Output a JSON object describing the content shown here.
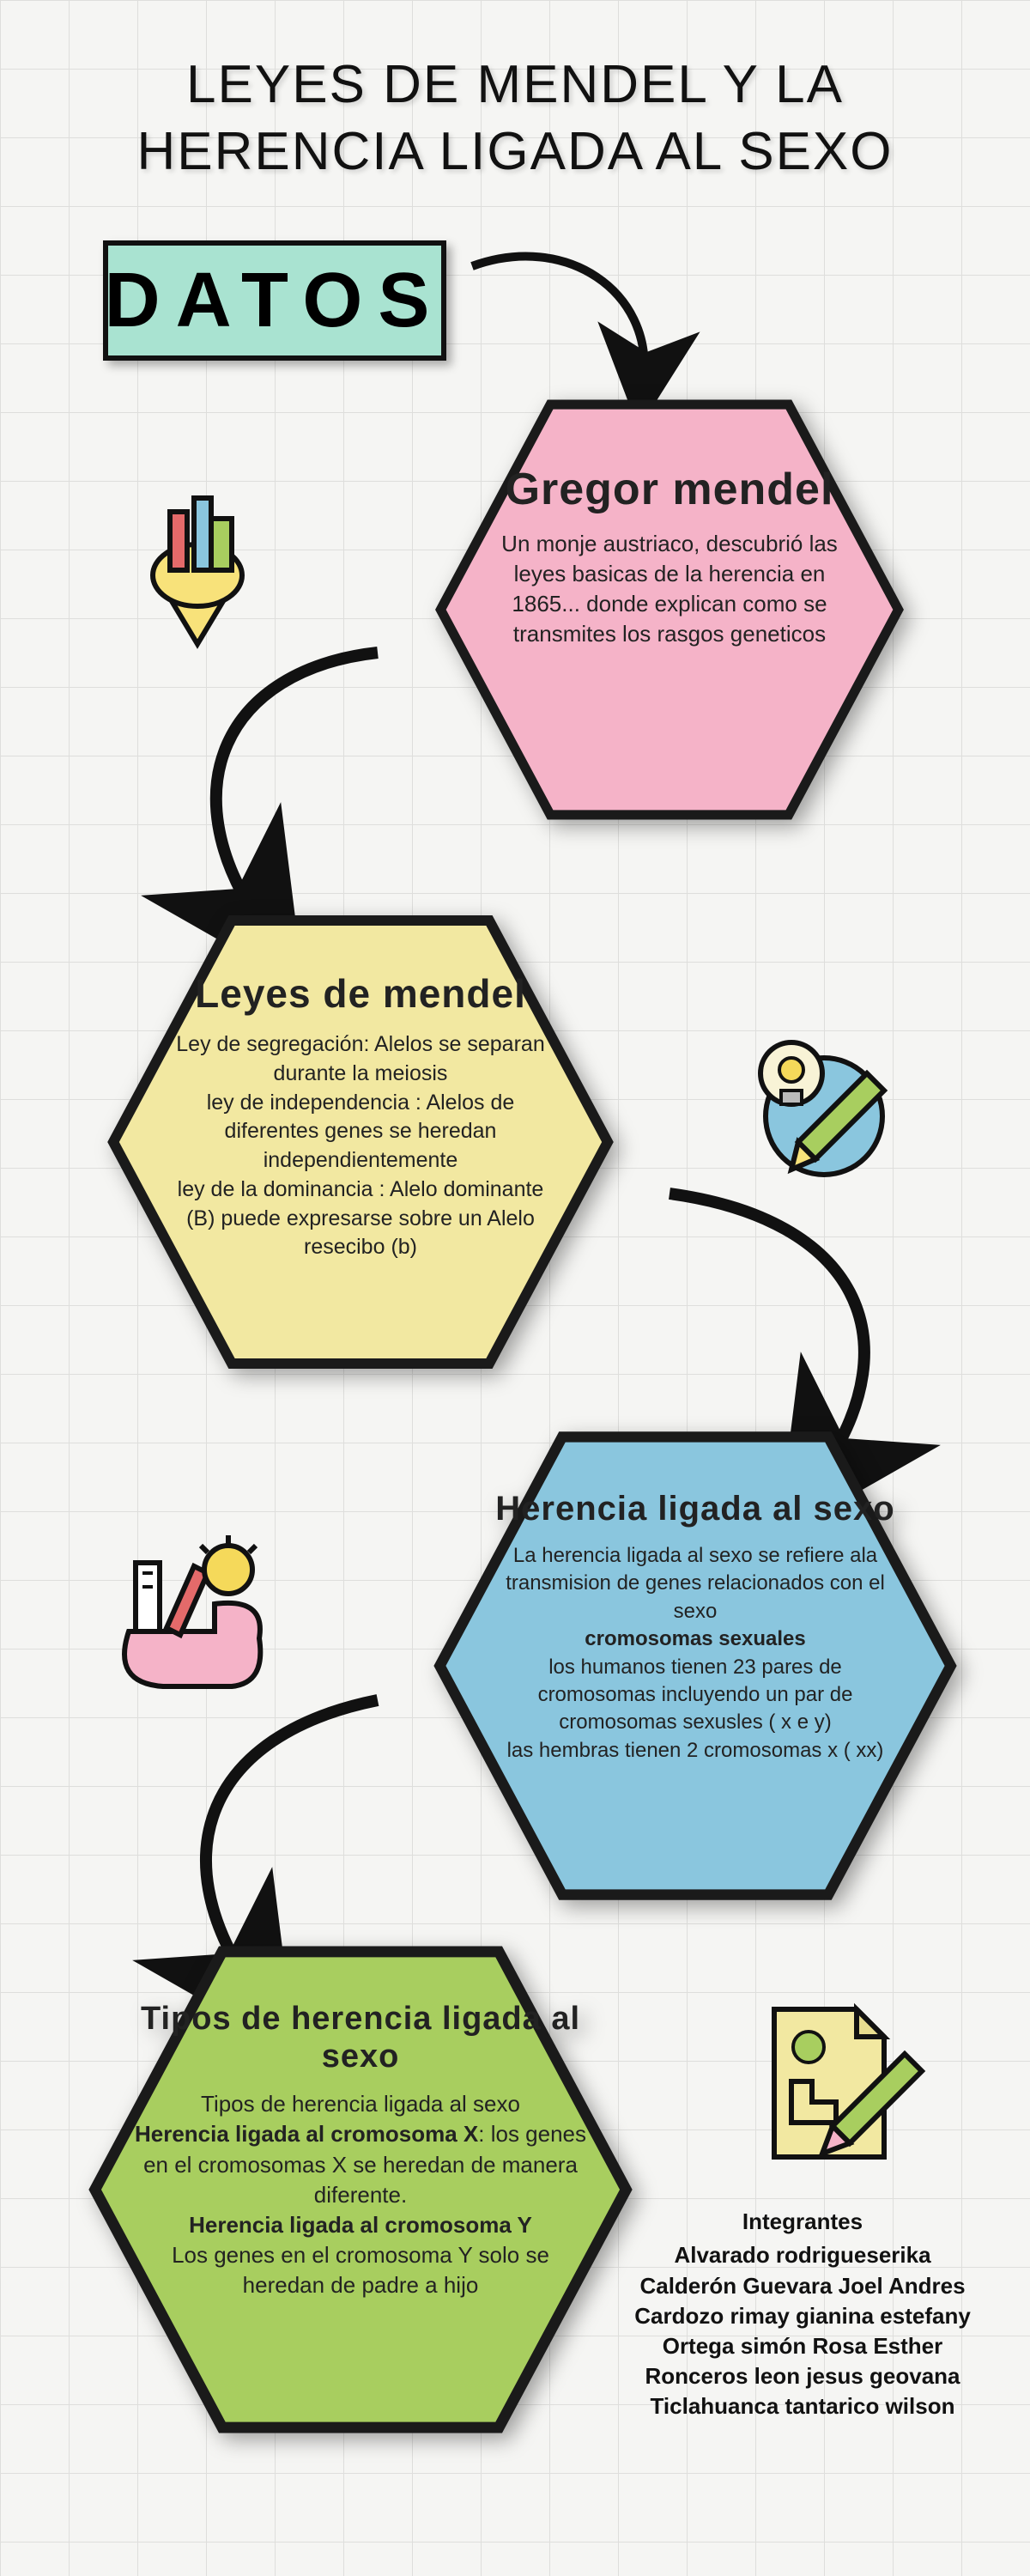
{
  "title": "LEYES DE  MENDEL  Y LA HERENCIA LIGADA AL SEXO",
  "datos": {
    "label": "DATOS",
    "bg": "#a9e3d1"
  },
  "colors": {
    "pink": "#f5b3c8",
    "yellow": "#f2e8a1",
    "blue": "#8ac6de",
    "green": "#a8ce5f",
    "stroke": "#1a1a1a"
  },
  "hex1": {
    "title": "Gregor mendel",
    "body": "Un monje austriaco, descubrió las leyes basicas de la herencia en 1865... donde explican como se transmites los rasgos geneticos"
  },
  "hex2": {
    "title": "Leyes de mendel",
    "body": "Ley de segregación: Alelos se separan durante la meiosis\nley de independencia : Alelos de diferentes genes se heredan independientemente\nley de la dominancia : Alelo dominante (B) puede expresarse sobre un Alelo resecibo (b)"
  },
  "hex3": {
    "title": "Herencia ligada al sexo",
    "body_html": "La herencia ligada al sexo se refiere ala transmision de genes relacionados con el sexo<br><b>cromosomas sexuales</b><br>los humanos tienen 23 pares de cromosomas incluyendo un par de cromosomas sexusles ( x e y)<br>las hembras tienen 2 cromosomas x ( xx)"
  },
  "hex4": {
    "title": "Tipos de herencia ligada al sexo",
    "body_html": "Tipos de herencia ligada al sexo<br><b>Herencia ligada al cromosoma X</b>: los genes en el cromosomas X se heredan de manera diferente.<br><b>Herencia ligada al cromosoma Y</b><br>Los genes en el cromosoma Y solo se heredan de padre a hijo"
  },
  "members": {
    "title": "Integrantes",
    "list": [
      "Alvarado rodrigueserika",
      "Calderón Guevara Joel Andres",
      "Cardozo rimay gianina estefany",
      "Ortega simón Rosa Esther",
      "Ronceros leon jesus geovana",
      "Ticlahuanca tantarico wilson"
    ]
  }
}
